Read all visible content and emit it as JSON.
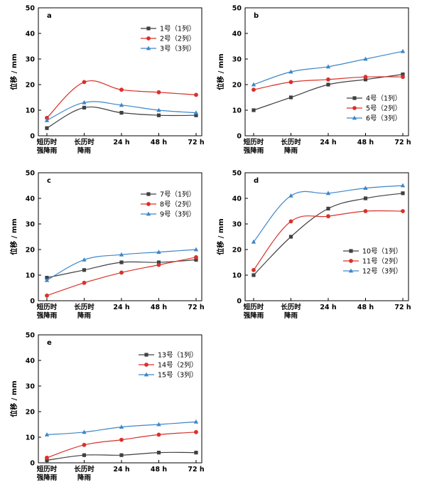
{
  "colors": {
    "black": "#404040",
    "red": "#d9312a",
    "blue": "#3d86c8"
  },
  "chart_data": [
    {
      "type": "line",
      "panel_label": "a",
      "categories": [
        [
          "短历时",
          "强降雨"
        ],
        [
          "长历时",
          "降雨"
        ],
        [
          "24 h"
        ],
        [
          "48 h"
        ],
        [
          "72 h"
        ]
      ],
      "ylabel": "位移 / mm",
      "ylim": [
        0,
        50
      ],
      "yticks": [
        "0",
        "10",
        "20",
        "30",
        "40",
        "50"
      ],
      "legend_position": "top-right",
      "series": [
        {
          "name": "1号（1列）",
          "color": "black",
          "marker": "square",
          "values": [
            3,
            11,
            9,
            8,
            8
          ]
        },
        {
          "name": "2号（2列）",
          "color": "red",
          "marker": "circle",
          "values": [
            7,
            21,
            18,
            17,
            16
          ]
        },
        {
          "name": "3号（3列）",
          "color": "blue",
          "marker": "triangle",
          "values": [
            6,
            13,
            12,
            10,
            9
          ]
        }
      ]
    },
    {
      "type": "line",
      "panel_label": "b",
      "categories": [
        [
          "短历时",
          "强降雨"
        ],
        [
          "长历时",
          "降雨"
        ],
        [
          "24 h"
        ],
        [
          "48 h"
        ],
        [
          "72 h"
        ]
      ],
      "ylabel": "位移 / mm",
      "ylim": [
        0,
        50
      ],
      "yticks": [
        "0",
        "10",
        "20",
        "30",
        "40",
        "50"
      ],
      "legend_position": "bottom-right",
      "series": [
        {
          "name": "4号（1列）",
          "color": "black",
          "marker": "square",
          "values": [
            10,
            15,
            20,
            22,
            24
          ]
        },
        {
          "name": "5号（2列）",
          "color": "red",
          "marker": "circle",
          "values": [
            18,
            21,
            22,
            23,
            23
          ]
        },
        {
          "name": "6号（3列）",
          "color": "blue",
          "marker": "triangle",
          "values": [
            20,
            25,
            27,
            30,
            33
          ]
        }
      ]
    },
    {
      "type": "line",
      "panel_label": "c",
      "categories": [
        [
          "短历时",
          "强降雨"
        ],
        [
          "长历时",
          "降雨"
        ],
        [
          "24 h"
        ],
        [
          "48 h"
        ],
        [
          "72 h"
        ]
      ],
      "ylabel": "位移 / mm",
      "ylim": [
        0,
        50
      ],
      "yticks": [
        "0",
        "10",
        "20",
        "30",
        "40",
        "50"
      ],
      "legend_position": "top-right",
      "series": [
        {
          "name": "7号（1列）",
          "color": "black",
          "marker": "square",
          "values": [
            9,
            12,
            15,
            15,
            16
          ]
        },
        {
          "name": "8号（2列）",
          "color": "red",
          "marker": "circle",
          "values": [
            2,
            7,
            11,
            14,
            17
          ]
        },
        {
          "name": "9号（3列）",
          "color": "blue",
          "marker": "triangle",
          "values": [
            8,
            16,
            18,
            19,
            20
          ]
        }
      ]
    },
    {
      "type": "line",
      "panel_label": "d",
      "categories": [
        [
          "短历时",
          "强降雨"
        ],
        [
          "长历时",
          "降雨"
        ],
        [
          "24 h"
        ],
        [
          "48 h"
        ],
        [
          "72 h"
        ]
      ],
      "ylabel": "位移 / mm",
      "ylim": [
        0,
        50
      ],
      "yticks": [
        "0",
        "10",
        "20",
        "30",
        "40",
        "50"
      ],
      "legend_position": "bottom-right",
      "series": [
        {
          "name": "10号（1列）",
          "color": "black",
          "marker": "square",
          "values": [
            10,
            25,
            36,
            40,
            42
          ]
        },
        {
          "name": "11号（2列）",
          "color": "red",
          "marker": "circle",
          "values": [
            12,
            31,
            33,
            35,
            35
          ]
        },
        {
          "name": "12号（3列）",
          "color": "blue",
          "marker": "triangle",
          "values": [
            23,
            41,
            42,
            44,
            45
          ]
        }
      ]
    },
    {
      "type": "line",
      "panel_label": "e",
      "categories": [
        [
          "短历时",
          "强降雨"
        ],
        [
          "长历时",
          "降雨"
        ],
        [
          "24 h"
        ],
        [
          "48 h"
        ],
        [
          "72 h"
        ]
      ],
      "ylabel": "位移 / mm",
      "ylim": [
        0,
        50
      ],
      "yticks": [
        "0",
        "10",
        "20",
        "30",
        "40",
        "50"
      ],
      "legend_position": "top-right",
      "series": [
        {
          "name": "13号（1列）",
          "color": "black",
          "marker": "square",
          "values": [
            1,
            3,
            3,
            4,
            4
          ]
        },
        {
          "name": "14号（2列）",
          "color": "red",
          "marker": "circle",
          "values": [
            2,
            7,
            9,
            11,
            12
          ]
        },
        {
          "name": "15号（3列）",
          "color": "blue",
          "marker": "triangle",
          "values": [
            11,
            12,
            14,
            15,
            16
          ]
        }
      ]
    }
  ]
}
